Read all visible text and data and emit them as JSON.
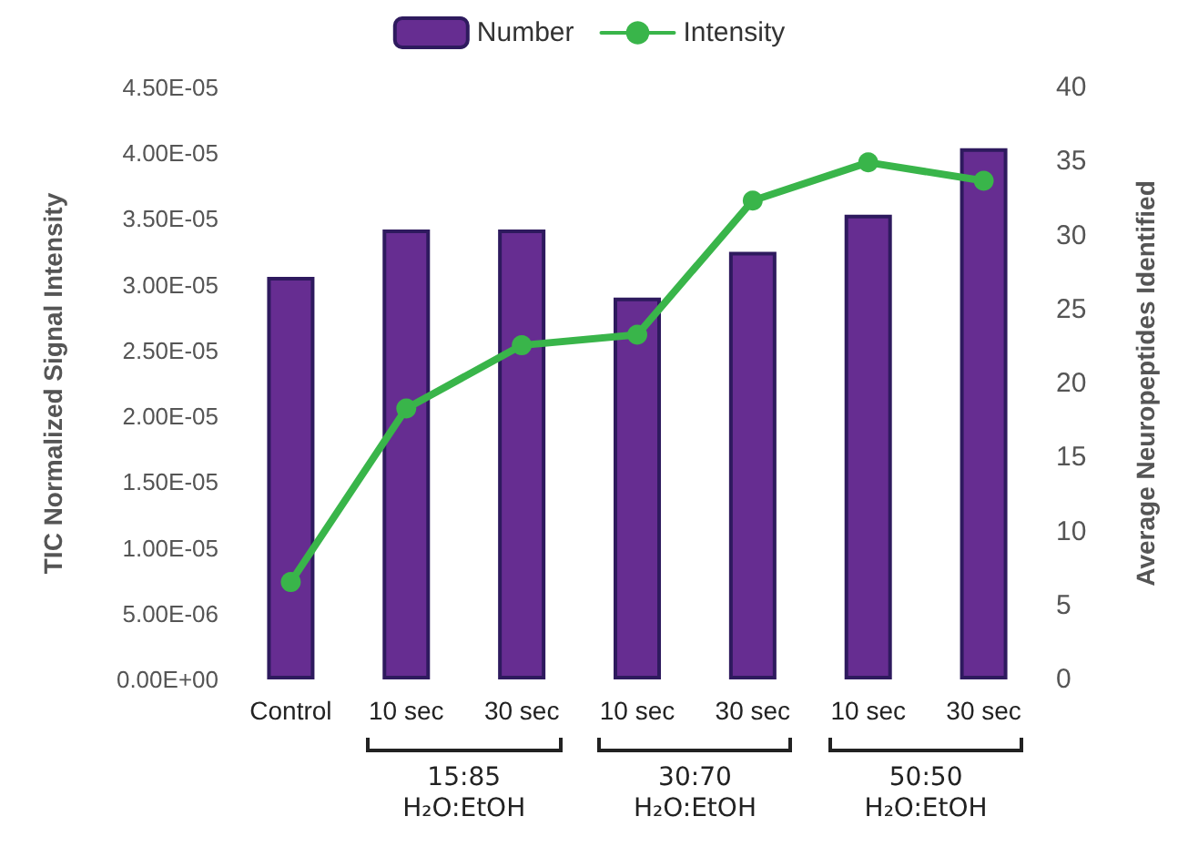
{
  "chart_data": {
    "type": "bar",
    "ylabel": "TIC Normalized Signal Intensity",
    "y2label": "Average Neuropeptides Identified",
    "categories": [
      "Control",
      "10 sec",
      "30 sec",
      "10 sec",
      "30 sec",
      "10 sec",
      "30 sec"
    ],
    "series": [
      {
        "name": "Number",
        "axis": "y2",
        "color": "#662d91",
        "values": [
          27.2,
          30.4,
          30.4,
          25.8,
          28.9,
          31.4,
          35.9
        ]
      },
      {
        "name": "Intensity",
        "type": "line",
        "axis": "y",
        "color": "#39b54a",
        "values": [
          7.4e-06,
          2.06e-05,
          2.54e-05,
          2.62e-05,
          3.64e-05,
          3.93e-05,
          3.79e-05
        ]
      }
    ],
    "ylim": [
      0,
      4.5e-05
    ],
    "yticks": [
      {
        "value": 0,
        "label": "0.00E+00"
      },
      {
        "value": 5e-06,
        "label": "5.00E-06"
      },
      {
        "value": 1e-05,
        "label": "1.00E-05"
      },
      {
        "value": 1.5e-05,
        "label": "1.50E-05"
      },
      {
        "value": 2e-05,
        "label": "2.00E-05"
      },
      {
        "value": 2.5e-05,
        "label": "2.50E-05"
      },
      {
        "value": 3e-05,
        "label": "3.00E-05"
      },
      {
        "value": 3.5e-05,
        "label": "3.50E-05"
      },
      {
        "value": 4e-05,
        "label": "4.00E-05"
      },
      {
        "value": 4.5e-05,
        "label": "4.50E-05"
      }
    ],
    "y2lim": [
      0,
      40
    ],
    "y2ticks": [
      0,
      5,
      10,
      15,
      20,
      25,
      30,
      35,
      40
    ],
    "annotations": [
      "15:85\nH₂O:EtOH",
      "30:70\nH₂O:EtOH",
      "50:50\nH₂O:EtOH"
    ],
    "legend": "top",
    "grid": false,
    "marker": "circle",
    "line_style": "solid"
  }
}
